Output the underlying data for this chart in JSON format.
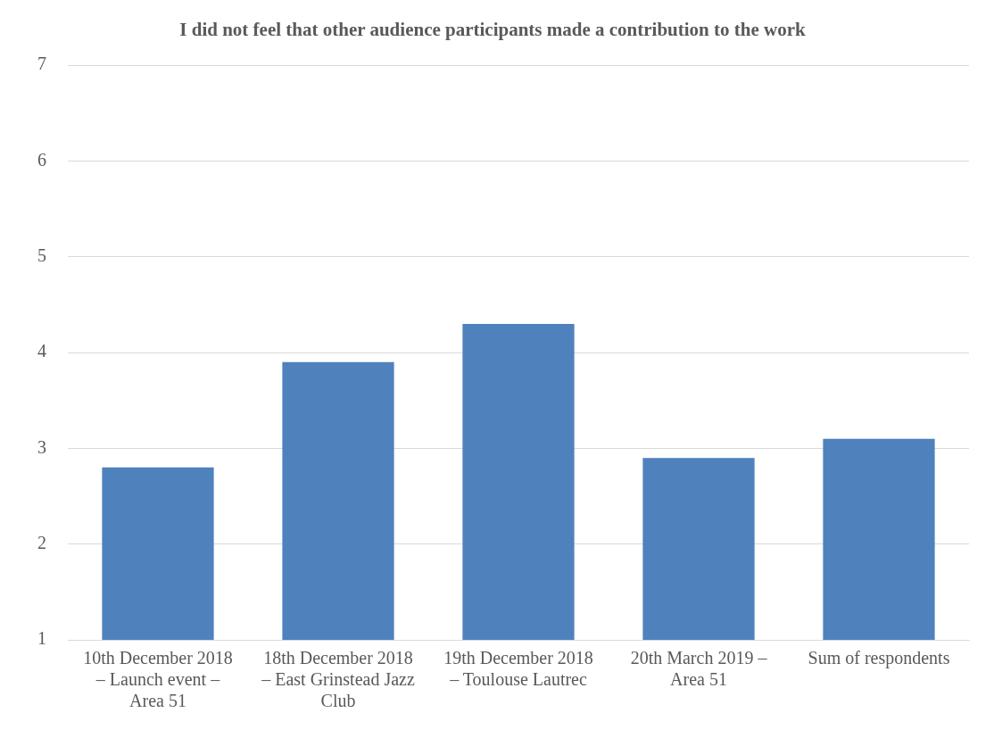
{
  "chart_data": {
    "type": "bar",
    "title": "I did not feel that other audience participants made a contribution to the work",
    "categories": [
      "10th December 2018 – Launch event – Area 51",
      "18th December 2018 – East Grinstead Jazz Club",
      "19th December 2018 – Toulouse Lautrec",
      "20th March 2019 – Area 51",
      "Sum of respondents"
    ],
    "values": [
      2.8,
      3.9,
      4.3,
      2.9,
      3.1
    ],
    "color": "#4f81bd",
    "ylim": [
      1,
      7
    ],
    "yticks": [
      1,
      2,
      3,
      4,
      5,
      6,
      7
    ],
    "grid": "y",
    "legend": false
  }
}
